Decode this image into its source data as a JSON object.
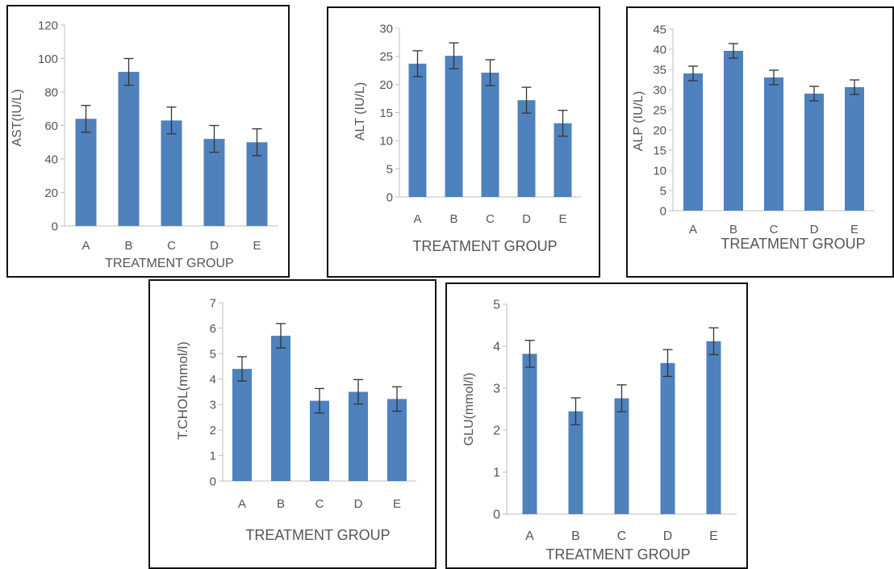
{
  "chart_data": [
    {
      "type": "bar",
      "ylabel": "AST(IU/L)",
      "xlabel": "TREATMENT GROUP",
      "categories": [
        "A",
        "B",
        "C",
        "D",
        "E"
      ],
      "values": [
        64,
        92,
        63,
        52,
        50
      ],
      "errors": [
        8,
        8,
        8,
        8,
        8
      ],
      "ylim": [
        0,
        120
      ],
      "yticks": [
        0,
        20,
        40,
        60,
        80,
        100,
        120
      ],
      "bar_color": "#4f81bd"
    },
    {
      "type": "bar",
      "ylabel": "ALT (IU/L)",
      "xlabel": "TREATMENT GROUP",
      "categories": [
        "A",
        "B",
        "C",
        "D",
        "E"
      ],
      "values": [
        23.7,
        25.1,
        22.1,
        17.2,
        13.1
      ],
      "errors": [
        2.3,
        2.3,
        2.3,
        2.3,
        2.3
      ],
      "ylim": [
        0,
        30
      ],
      "yticks": [
        0,
        5,
        10,
        15,
        20,
        25,
        30
      ],
      "bar_color": "#4f81bd"
    },
    {
      "type": "bar",
      "ylabel": "ALP (IU/L)",
      "xlabel": "TREATMENT GROUP",
      "categories": [
        "A",
        "B",
        "C",
        "D",
        "E"
      ],
      "values": [
        34.0,
        39.6,
        33.0,
        29.0,
        30.6
      ],
      "errors": [
        1.8,
        1.8,
        1.8,
        1.8,
        1.8
      ],
      "ylim": [
        0,
        45
      ],
      "yticks": [
        0,
        5,
        10,
        15,
        20,
        25,
        30,
        35,
        40,
        45
      ],
      "bar_color": "#4f81bd"
    },
    {
      "type": "bar",
      "ylabel": "T.CHOL(mmol/l)",
      "xlabel": "TREATMENT GROUP",
      "categories": [
        "A",
        "B",
        "C",
        "D",
        "E"
      ],
      "values": [
        4.4,
        5.7,
        3.15,
        3.5,
        3.22
      ],
      "errors": [
        0.48,
        0.48,
        0.48,
        0.48,
        0.48
      ],
      "ylim": [
        0,
        7
      ],
      "yticks": [
        0,
        1,
        2,
        3,
        4,
        5,
        6,
        7
      ],
      "bar_color": "#4f81bd"
    },
    {
      "type": "bar",
      "ylabel": "GLU(mmol/l)",
      "xlabel": "TREATMENT GROUP",
      "categories": [
        "A",
        "B",
        "C",
        "D",
        "E"
      ],
      "values": [
        3.82,
        2.45,
        2.76,
        3.6,
        4.12
      ],
      "errors": [
        0.32,
        0.32,
        0.32,
        0.32,
        0.32
      ],
      "ylim": [
        0,
        5
      ],
      "yticks": [
        0,
        1,
        2,
        3,
        4,
        5
      ],
      "bar_color": "#4f81bd"
    }
  ]
}
